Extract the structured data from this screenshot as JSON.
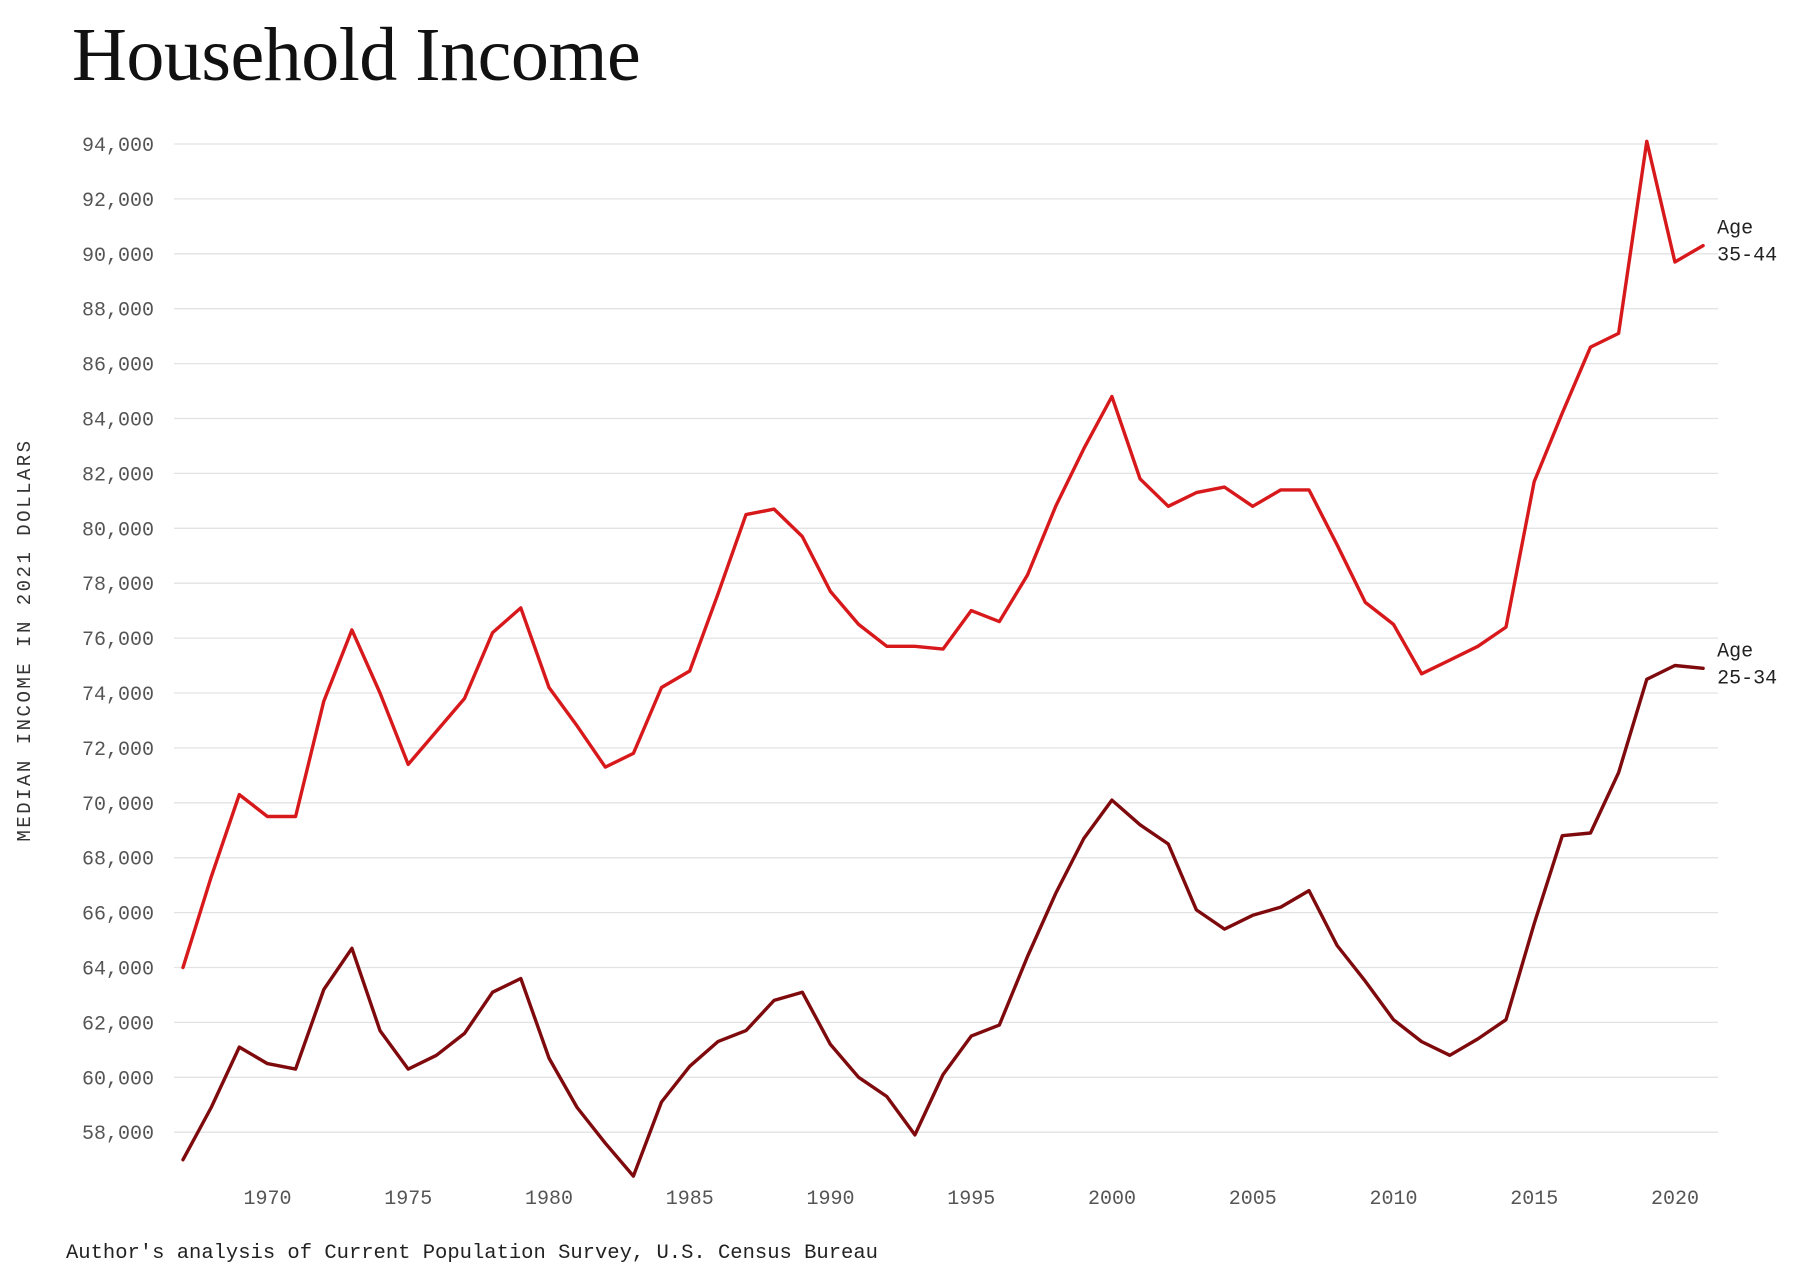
{
  "chart_data": {
    "type": "line",
    "title": "Household Income",
    "ylabel": "MEDIAN INCOME IN 2021 DOLLARS",
    "xlabel": "",
    "source": "Author's analysis of Current Population Survey, U.S. Census Bureau",
    "xlim": [
      1967,
      2021
    ],
    "ylim": [
      56000,
      94000
    ],
    "x_ticks": [
      1970,
      1975,
      1980,
      1985,
      1990,
      1995,
      2000,
      2005,
      2010,
      2015,
      2020
    ],
    "y_ticks": [
      58000,
      60000,
      62000,
      64000,
      66000,
      68000,
      70000,
      72000,
      74000,
      76000,
      78000,
      80000,
      82000,
      84000,
      86000,
      88000,
      90000,
      92000,
      94000
    ],
    "y_tick_labels": [
      "58,000",
      "60,000",
      "62,000",
      "64,000",
      "66,000",
      "68,000",
      "70,000",
      "72,000",
      "74,000",
      "76,000",
      "78,000",
      "80,000",
      "82,000",
      "84,000",
      "86,000",
      "88,000",
      "90,000",
      "92,000",
      "94,000"
    ],
    "grid": true,
    "x": [
      1967,
      1968,
      1969,
      1970,
      1971,
      1972,
      1973,
      1974,
      1975,
      1976,
      1977,
      1978,
      1979,
      1980,
      1981,
      1982,
      1983,
      1984,
      1985,
      1986,
      1987,
      1988,
      1989,
      1990,
      1991,
      1992,
      1993,
      1994,
      1995,
      1996,
      1997,
      1998,
      1999,
      2000,
      2001,
      2002,
      2003,
      2004,
      2005,
      2006,
      2007,
      2008,
      2009,
      2010,
      2011,
      2012,
      2013,
      2014,
      2015,
      2016,
      2017,
      2018,
      2019,
      2020,
      2021
    ],
    "series": [
      {
        "name": "Age 35-44",
        "label_lines": [
          "Age",
          "35-44"
        ],
        "color": "#d7191c",
        "values": [
          64000,
          67300,
          70300,
          69500,
          69500,
          73700,
          76300,
          74000,
          71400,
          72600,
          73800,
          76200,
          77100,
          74200,
          72800,
          71300,
          71800,
          74200,
          74800,
          77600,
          80500,
          80700,
          79700,
          77700,
          76500,
          75700,
          75700,
          75600,
          77000,
          76600,
          78300,
          80800,
          82900,
          84800,
          81800,
          80800,
          81300,
          81500,
          80800,
          81400,
          81400,
          79400,
          77300,
          76500,
          74700,
          75200,
          75700,
          76400,
          81700,
          84200,
          86600,
          87100,
          94100,
          89700,
          90300
        ]
      },
      {
        "name": "Age 25-34",
        "label_lines": [
          "Age",
          "25-34"
        ],
        "color": "#7f0a0d",
        "values": [
          57000,
          58900,
          61100,
          60500,
          60300,
          63200,
          64700,
          61700,
          60300,
          60800,
          61600,
          63100,
          63600,
          60700,
          58900,
          57600,
          56400,
          59100,
          60400,
          61300,
          61700,
          62800,
          63100,
          61200,
          60000,
          59300,
          57900,
          60100,
          61500,
          61900,
          64400,
          66700,
          68700,
          70100,
          69200,
          68500,
          66100,
          65400,
          65900,
          66200,
          66800,
          64800,
          63500,
          62100,
          61300,
          60800,
          61400,
          62100,
          65600,
          68800,
          68900,
          71100,
          74500,
          75000,
          74900
        ]
      }
    ]
  }
}
